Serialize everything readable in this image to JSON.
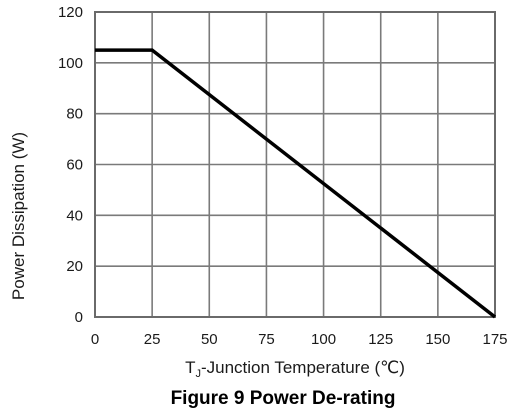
{
  "chart_data": {
    "type": "line",
    "title": "Figure 9 Power De-rating",
    "xlabel_main": "T",
    "xlabel_sub": "J",
    "xlabel_rest": "-Junction Temperature (℃)",
    "ylabel": "Power Dissipation (W)",
    "xlim": [
      0,
      175
    ],
    "ylim": [
      0,
      120
    ],
    "x_ticks": [
      "0",
      "25",
      "50",
      "75",
      "100",
      "125",
      "150",
      "175"
    ],
    "y_ticks": [
      "0",
      "20",
      "40",
      "60",
      "80",
      "100",
      "120"
    ],
    "grid": true,
    "series": [
      {
        "x": [
          0,
          25,
          175
        ],
        "y": [
          105,
          105,
          0
        ]
      }
    ],
    "line_color": "#000000",
    "grid_color": "#7a7a7a"
  }
}
